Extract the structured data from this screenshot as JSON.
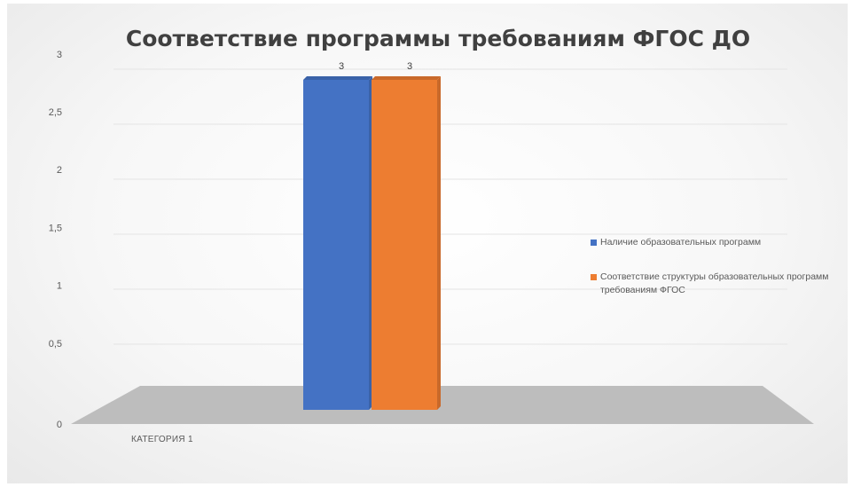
{
  "chart_data": {
    "type": "bar",
    "title": "Соответствие программы требованиям ФГОС ДО",
    "categories": [
      "КАТЕГОРИЯ 1"
    ],
    "series": [
      {
        "name": "Наличие образовательных программ",
        "values": [
          3
        ],
        "color": "#4472C4"
      },
      {
        "name": "Соответствие структуры образовательных программ требованиям ФГОС",
        "values": [
          3
        ],
        "color": "#ED7D31"
      }
    ],
    "y_ticks": [
      "0",
      "0,5",
      "1",
      "1,5",
      "2",
      "2,5",
      "3"
    ],
    "ylim": [
      0,
      3
    ],
    "grid": true,
    "legend": "right",
    "three_d": true
  }
}
